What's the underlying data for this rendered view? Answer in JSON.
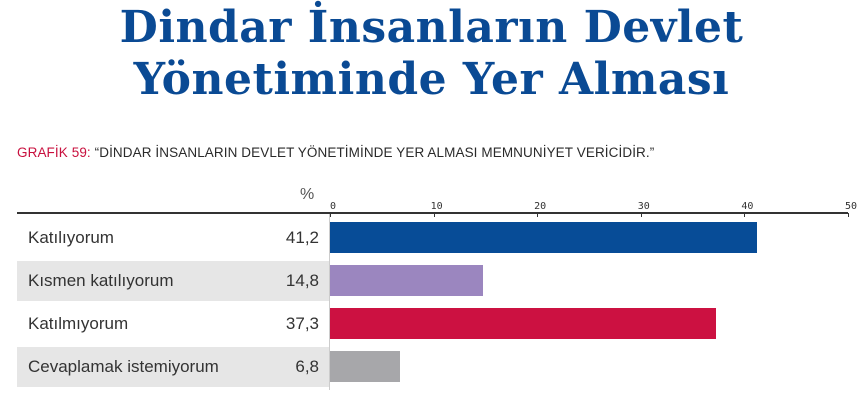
{
  "title_line1": "Dindar İnsanların Devlet",
  "title_line2": "Yönetiminde Yer Alması",
  "subtitle_label": "GRAFİK 59:",
  "subtitle_text": " “DİNDAR İNSANLARIN DEVLET YÖNETİMİNDE YER ALMASI MEMNUNİYET VERİCİDİR.”",
  "percent_symbol": "%",
  "chart_data": {
    "type": "bar",
    "orientation": "horizontal",
    "title": "“DİNDAR İNSANLARIN DEVLET YÖNETİMİNDE YER ALMASI MEMNUNİYET VERİCİDİR.”",
    "xlabel": "%",
    "ylabel": "",
    "xlim": [
      0,
      50
    ],
    "ticks": [
      0,
      10,
      20,
      30,
      40,
      50
    ],
    "categories": [
      "Katılıyorum",
      "Kısmen katılıyorum",
      "Katılmıyorum",
      "Cevaplamak istemiyorum"
    ],
    "values": [
      41.2,
      14.8,
      37.3,
      6.8
    ],
    "value_labels": [
      "41,2",
      "14,8",
      "37,3",
      "6,8"
    ],
    "colors": [
      "#074c97",
      "#9b86bf",
      "#cc1141",
      "#a7a7aa"
    ]
  }
}
